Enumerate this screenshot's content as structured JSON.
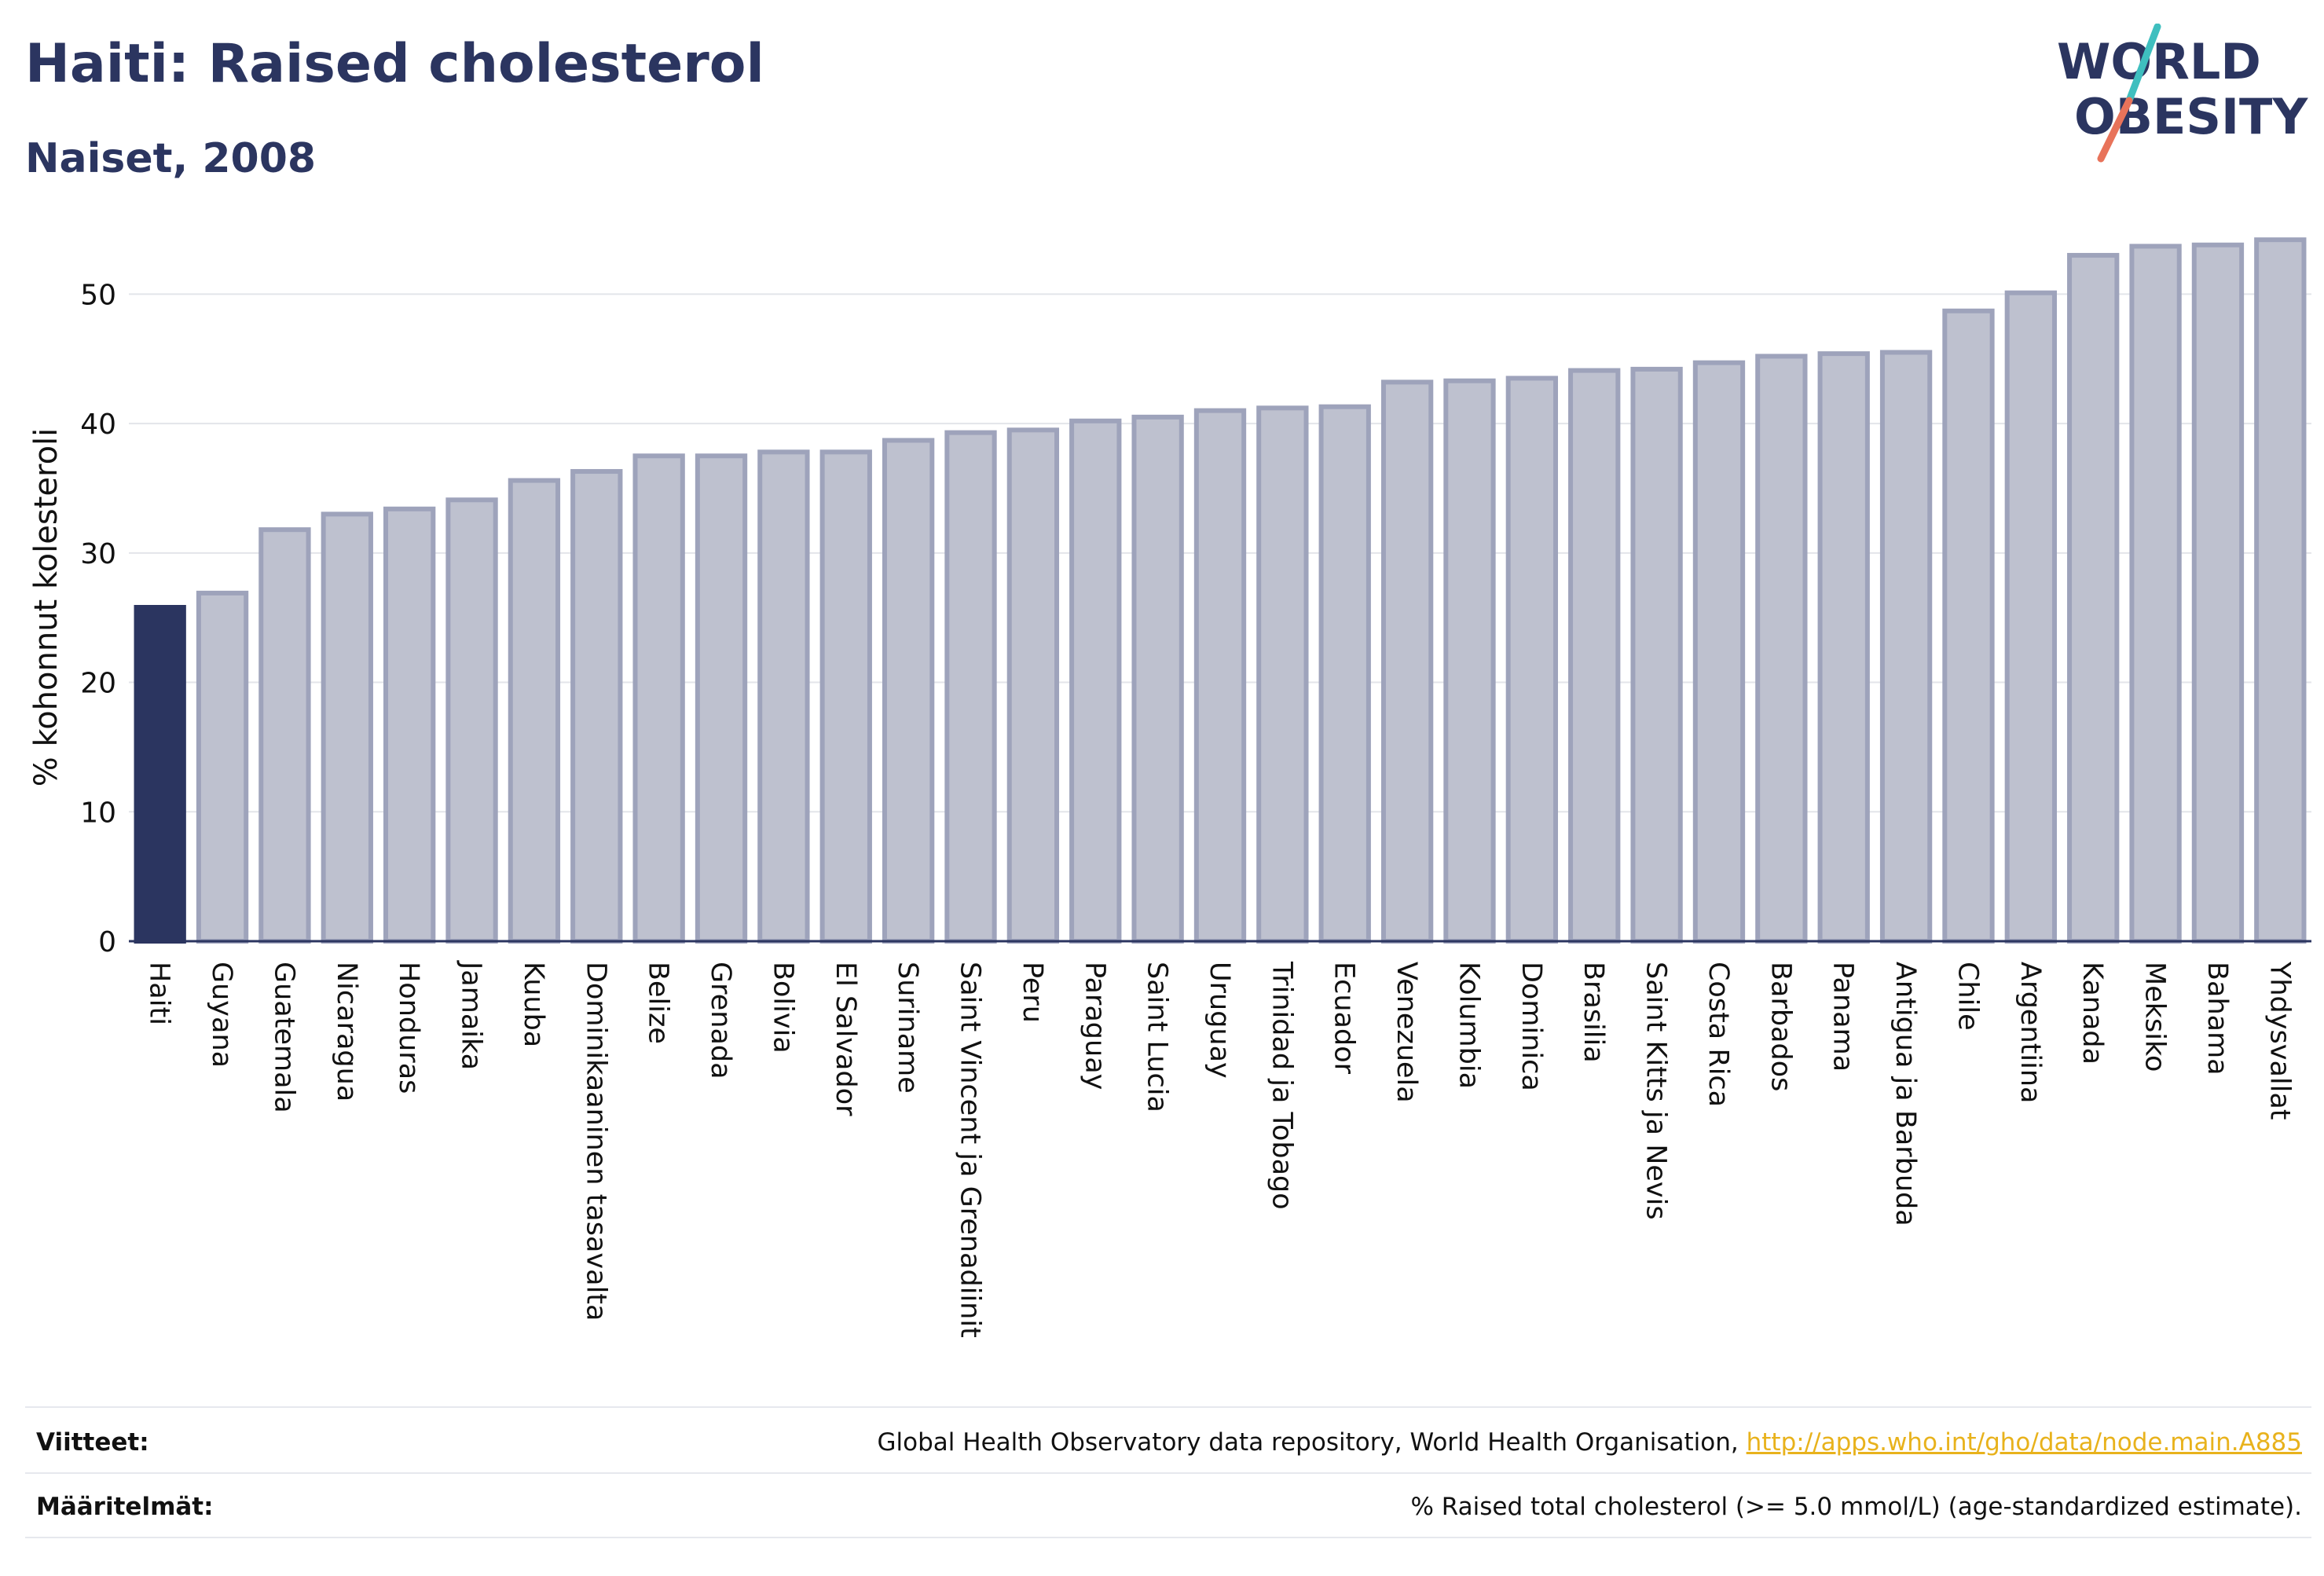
{
  "header": {
    "title": "Haiti: Raised cholesterol",
    "subtitle": "Naiset, 2008",
    "logo_line1": "WORLD",
    "logo_line2": "OBESITY"
  },
  "colors": {
    "highlight": "#2b3560",
    "bar_fill": "#bec1cf",
    "bar_stroke": "#9ea3bb",
    "grid": "#e3e5ea",
    "text": "#111111",
    "logo_teal": "#3fbfbf",
    "logo_red": "#e8735a"
  },
  "chart_data": {
    "type": "bar",
    "ylabel": "% kohonnut kolesteroli",
    "ylim": [
      0,
      55
    ],
    "yticks": [
      0,
      10,
      20,
      30,
      40,
      50
    ],
    "grid": true,
    "highlight_category": "Haiti",
    "categories": [
      "Haiti",
      "Guyana",
      "Guatemala",
      "Nicaragua",
      "Honduras",
      "Jamaika",
      "Kuuba",
      "Dominikaaninen tasavalta",
      "Belize",
      "Grenada",
      "Bolivia",
      "El Salvador",
      "Suriname",
      "Saint Vincent ja Grenadiinit",
      "Peru",
      "Paraguay",
      "Saint Lucia",
      "Uruguay",
      "Trinidad ja Tobago",
      "Ecuador",
      "Venezuela",
      "Kolumbia",
      "Dominica",
      "Brasilia",
      "Saint Kitts ja Nevis",
      "Costa Rica",
      "Barbados",
      "Panama",
      "Antigua ja Barbuda",
      "Chile",
      "Argentiina",
      "Kanada",
      "Meksiko",
      "Bahama",
      "Yhdysvallat"
    ],
    "values": [
      25.8,
      26.9,
      31.8,
      33.0,
      33.4,
      34.1,
      35.6,
      36.3,
      37.5,
      37.5,
      37.8,
      37.8,
      38.7,
      39.3,
      39.5,
      40.2,
      40.5,
      41.0,
      41.2,
      41.3,
      43.2,
      43.3,
      43.5,
      44.1,
      44.2,
      44.7,
      45.2,
      45.4,
      45.5,
      48.7,
      50.1,
      53.0,
      53.7,
      53.8,
      54.2
    ]
  },
  "footer": {
    "sources_label": "Viitteet:",
    "sources_text": "Global Health Observatory data repository, World Health Organisation, ",
    "sources_link": "http://apps.who.int/gho/data/node.main.A885",
    "definitions_label": "Määritelmät:",
    "definitions_text": "% Raised total cholesterol (>= 5.0 mmol/L) (age-standardized estimate)."
  }
}
